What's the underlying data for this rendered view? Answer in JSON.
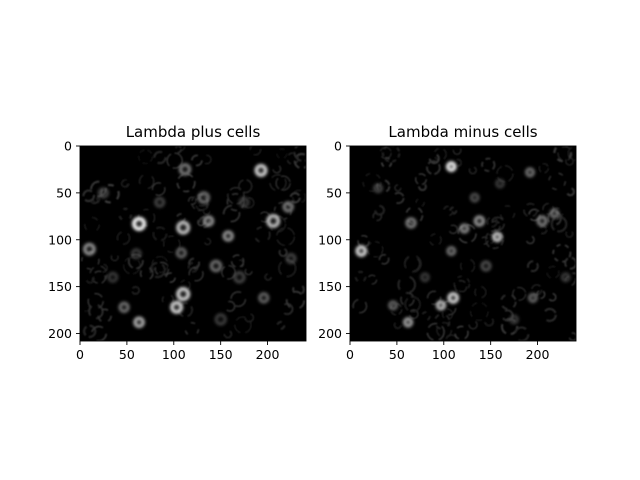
{
  "chart_data": [
    {
      "type": "heatmap",
      "title": "Lambda plus cells",
      "colormap": "gray",
      "background": "#000000",
      "x_ticks": [
        0,
        50,
        100,
        150,
        200
      ],
      "y_ticks": [
        0,
        50,
        100,
        150,
        200
      ],
      "xlim": [
        0,
        241
      ],
      "ylim": [
        0,
        208
      ],
      "y_inverted": true,
      "grid": false,
      "features": [
        {
          "x": 63,
          "y": 83,
          "r": 9,
          "intensity": 1.0
        },
        {
          "x": 193,
          "y": 26,
          "r": 8,
          "intensity": 0.85
        },
        {
          "x": 110,
          "y": 87,
          "r": 9,
          "intensity": 0.8
        },
        {
          "x": 206,
          "y": 80,
          "r": 9,
          "intensity": 0.78
        },
        {
          "x": 110,
          "y": 158,
          "r": 9,
          "intensity": 0.85
        },
        {
          "x": 103,
          "y": 172,
          "r": 8,
          "intensity": 0.85
        },
        {
          "x": 63,
          "y": 188,
          "r": 7,
          "intensity": 0.7
        },
        {
          "x": 10,
          "y": 110,
          "r": 8,
          "intensity": 0.6
        },
        {
          "x": 137,
          "y": 80,
          "r": 7,
          "intensity": 0.6
        },
        {
          "x": 158,
          "y": 96,
          "r": 7,
          "intensity": 0.6
        },
        {
          "x": 112,
          "y": 25,
          "r": 8,
          "intensity": 0.5
        },
        {
          "x": 222,
          "y": 65,
          "r": 7,
          "intensity": 0.5
        },
        {
          "x": 132,
          "y": 55,
          "r": 8,
          "intensity": 0.45
        },
        {
          "x": 47,
          "y": 172,
          "r": 7,
          "intensity": 0.45
        },
        {
          "x": 145,
          "y": 128,
          "r": 8,
          "intensity": 0.45
        },
        {
          "x": 196,
          "y": 162,
          "r": 7,
          "intensity": 0.4
        },
        {
          "x": 108,
          "y": 114,
          "r": 7,
          "intensity": 0.4
        },
        {
          "x": 25,
          "y": 50,
          "r": 7,
          "intensity": 0.25
        },
        {
          "x": 85,
          "y": 60,
          "r": 7,
          "intensity": 0.25
        },
        {
          "x": 170,
          "y": 140,
          "r": 8,
          "intensity": 0.25
        },
        {
          "x": 225,
          "y": 120,
          "r": 7,
          "intensity": 0.25
        },
        {
          "x": 35,
          "y": 140,
          "r": 7,
          "intensity": 0.2
        },
        {
          "x": 150,
          "y": 185,
          "r": 8,
          "intensity": 0.22
        },
        {
          "x": 60,
          "y": 115,
          "r": 7,
          "intensity": 0.2
        },
        {
          "x": 175,
          "y": 60,
          "r": 7,
          "intensity": 0.2
        }
      ]
    },
    {
      "type": "heatmap",
      "title": "Lambda minus cells",
      "colormap": "gray",
      "background": "#000000",
      "x_ticks": [
        0,
        50,
        100,
        150,
        200
      ],
      "y_ticks": [
        0,
        50,
        100,
        150,
        200
      ],
      "xlim": [
        0,
        241
      ],
      "ylim": [
        0,
        208
      ],
      "y_inverted": true,
      "grid": false,
      "features": [
        {
          "x": 108,
          "y": 22,
          "r": 6,
          "intensity": 0.95
        },
        {
          "x": 110,
          "y": 162,
          "r": 7,
          "intensity": 0.85
        },
        {
          "x": 97,
          "y": 170,
          "r": 6,
          "intensity": 0.75
        },
        {
          "x": 12,
          "y": 112,
          "r": 7,
          "intensity": 0.85
        },
        {
          "x": 62,
          "y": 188,
          "r": 6,
          "intensity": 0.65
        },
        {
          "x": 157,
          "y": 97,
          "r": 6,
          "intensity": 0.8
        },
        {
          "x": 138,
          "y": 80,
          "r": 7,
          "intensity": 0.6
        },
        {
          "x": 122,
          "y": 88,
          "r": 6,
          "intensity": 0.55
        },
        {
          "x": 65,
          "y": 82,
          "r": 7,
          "intensity": 0.5
        },
        {
          "x": 192,
          "y": 28,
          "r": 6,
          "intensity": 0.45
        },
        {
          "x": 205,
          "y": 80,
          "r": 7,
          "intensity": 0.5
        },
        {
          "x": 218,
          "y": 72,
          "r": 6,
          "intensity": 0.45
        },
        {
          "x": 46,
          "y": 170,
          "r": 6,
          "intensity": 0.4
        },
        {
          "x": 195,
          "y": 162,
          "r": 6,
          "intensity": 0.4
        },
        {
          "x": 108,
          "y": 112,
          "r": 6,
          "intensity": 0.45
        },
        {
          "x": 145,
          "y": 128,
          "r": 7,
          "intensity": 0.3
        },
        {
          "x": 133,
          "y": 55,
          "r": 6,
          "intensity": 0.3
        },
        {
          "x": 30,
          "y": 45,
          "r": 6,
          "intensity": 0.25
        },
        {
          "x": 230,
          "y": 140,
          "r": 6,
          "intensity": 0.2
        },
        {
          "x": 80,
          "y": 140,
          "r": 6,
          "intensity": 0.2
        },
        {
          "x": 175,
          "y": 185,
          "r": 6,
          "intensity": 0.2
        },
        {
          "x": 160,
          "y": 40,
          "r": 6,
          "intensity": 0.2
        }
      ]
    }
  ]
}
